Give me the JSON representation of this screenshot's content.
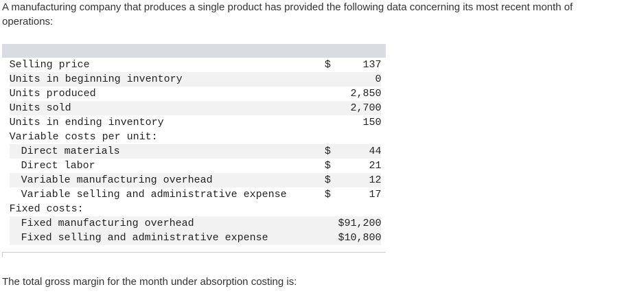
{
  "intro_text": "A manufacturing company that produces a single product has provided the following data concerning its most recent month of operations:",
  "rows": [
    {
      "label": "Selling price",
      "currency": "$",
      "value": "137"
    },
    {
      "label": "Units in beginning inventory",
      "currency": "",
      "value": "0"
    },
    {
      "label": "Units produced",
      "currency": "",
      "value": "2,850"
    },
    {
      "label": "Units sold",
      "currency": "",
      "value": "2,700"
    },
    {
      "label": "Units in ending inventory",
      "currency": "",
      "value": "150"
    },
    {
      "label": "Variable costs per unit:",
      "currency": "",
      "value": ""
    },
    {
      "label": "Direct materials",
      "currency": "$",
      "value": "44"
    },
    {
      "label": "Direct labor",
      "currency": "$",
      "value": "21"
    },
    {
      "label": "Variable manufacturing overhead",
      "currency": "$",
      "value": "12"
    },
    {
      "label": "Variable selling and administrative expense",
      "currency": "$",
      "value": "17"
    },
    {
      "label": "Fixed costs:",
      "currency": "",
      "value": ""
    },
    {
      "label": "Fixed manufacturing overhead",
      "currency": "",
      "value": "$91,200"
    },
    {
      "label": "Fixed selling and administrative expense",
      "currency": "",
      "value": "$10,800"
    }
  ],
  "question_text": "The total gross margin for the month under absorption costing is:"
}
